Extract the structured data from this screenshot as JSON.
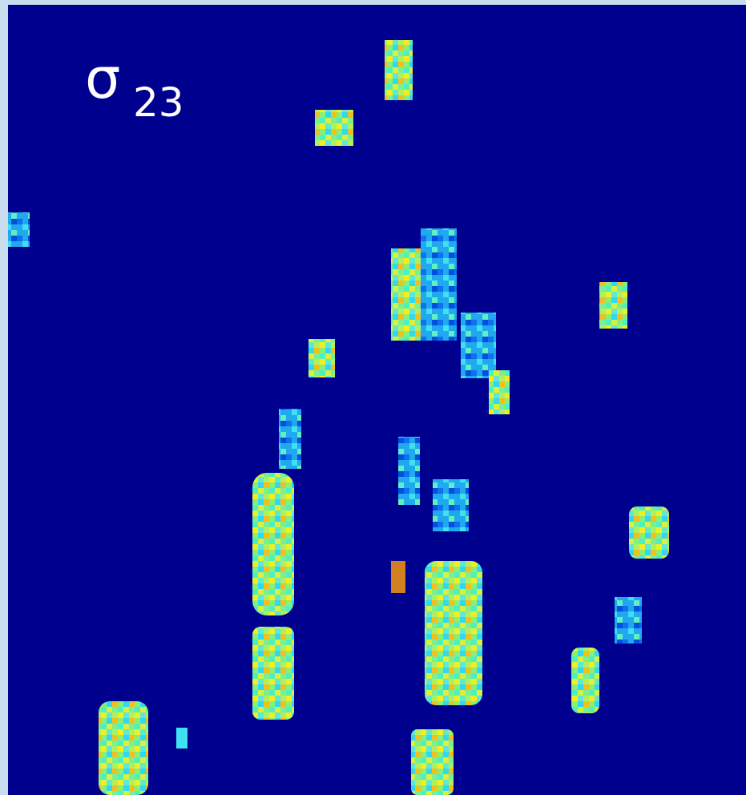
{
  "label": {
    "symbol": "σ",
    "subscript": "23"
  }
}
